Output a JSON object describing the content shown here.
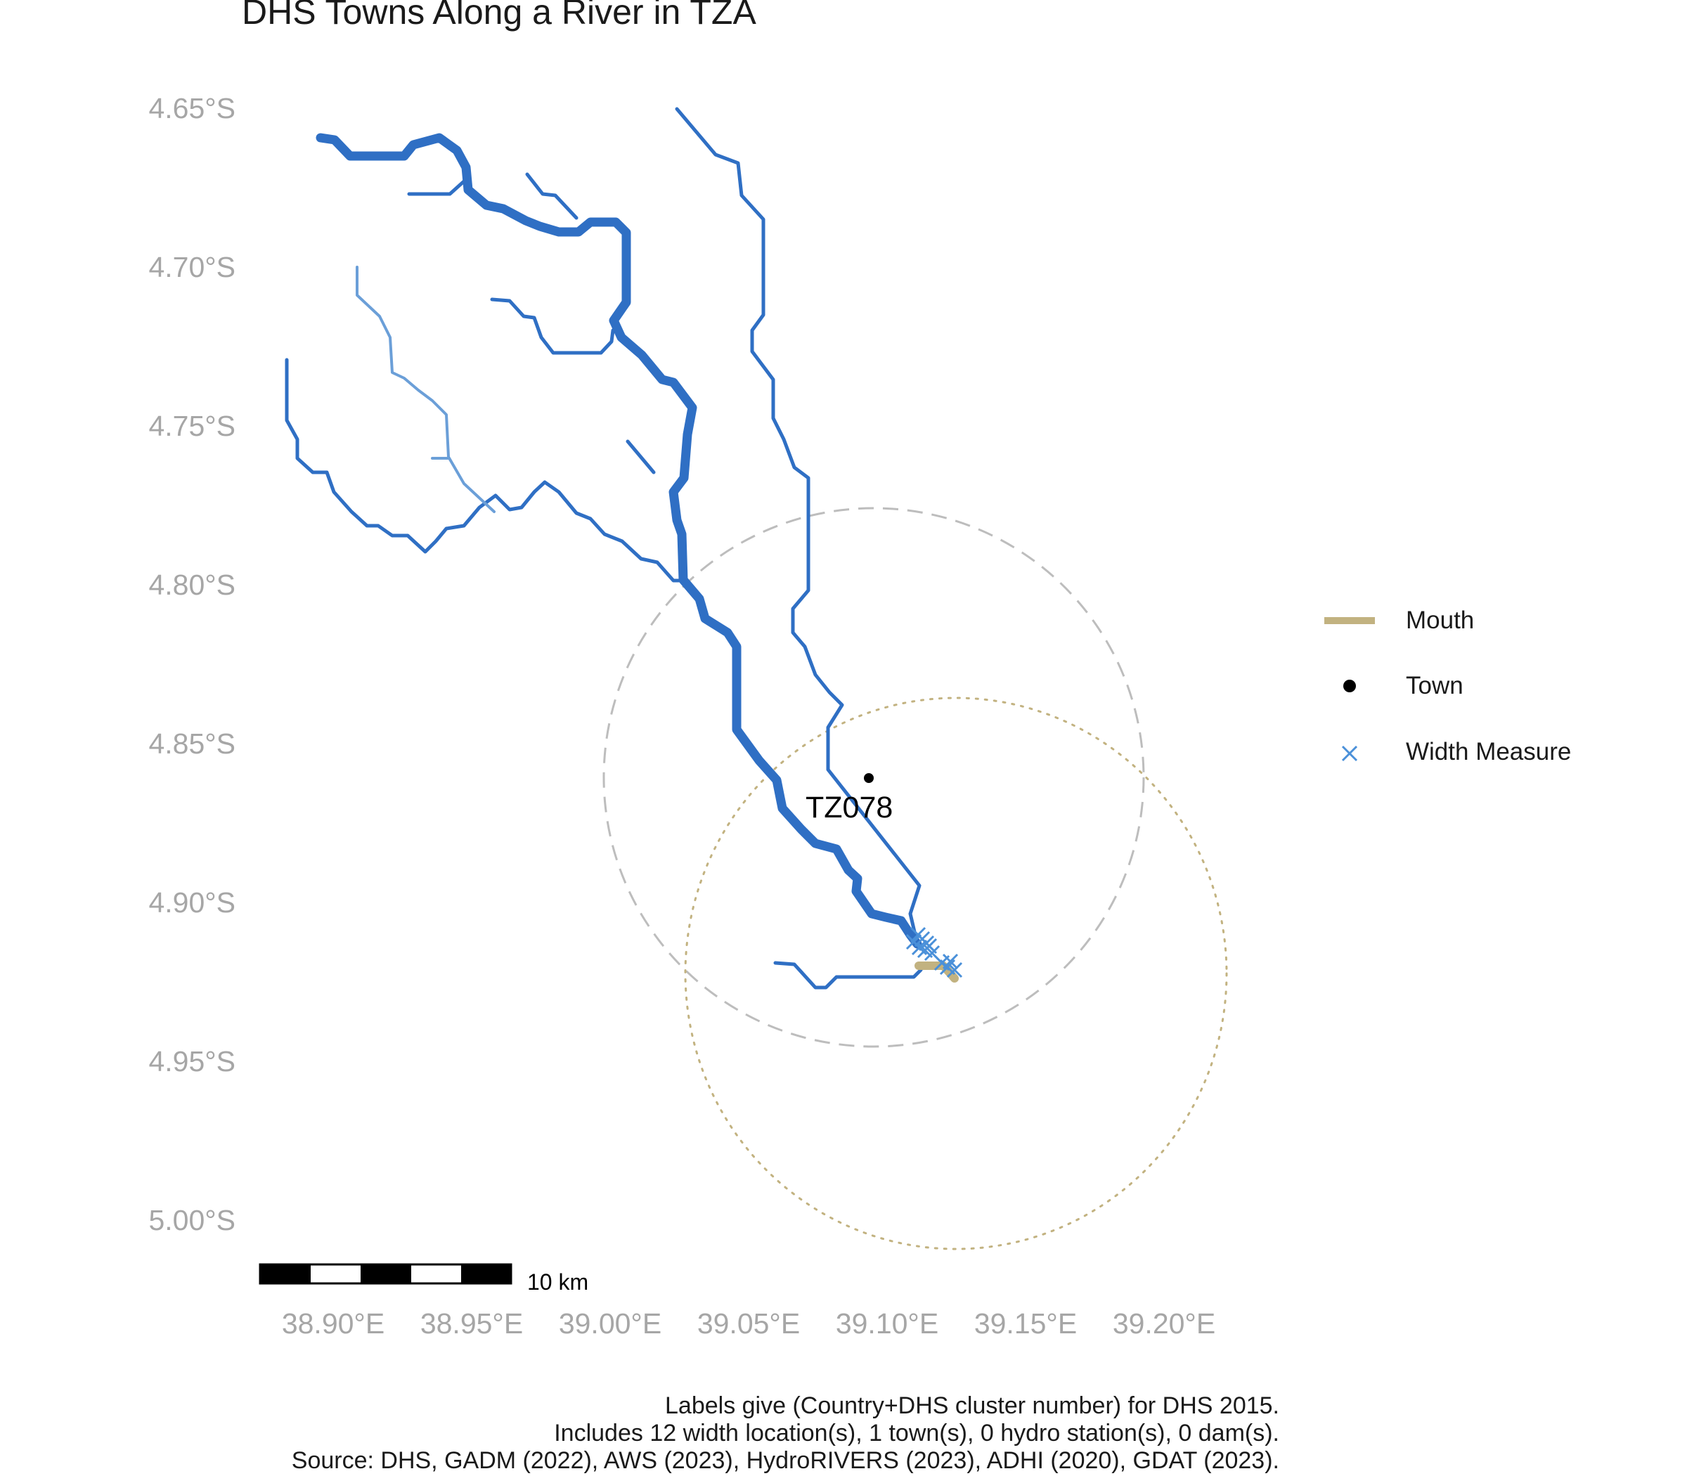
{
  "title": "DHS Towns Along a River in TZA",
  "axes": {
    "y_ticks": [
      "4.65°S",
      "4.70°S",
      "4.75°S",
      "4.80°S",
      "4.85°S",
      "4.90°S",
      "4.95°S",
      "5.00°S"
    ],
    "x_ticks": [
      "38.90°E",
      "38.95°E",
      "39.00°E",
      "39.05°E",
      "39.10°E",
      "39.15°E",
      "39.20°E"
    ],
    "lat_range": [
      -5.0,
      -4.65
    ],
    "lon_range": [
      38.9,
      39.2
    ]
  },
  "town": {
    "label": "TZ078",
    "lon": 39.095,
    "lat": -4.86
  },
  "mouth": {
    "lon": 39.118,
    "lat": -4.919
  },
  "scale_bar": {
    "label": "10 km"
  },
  "legend": [
    {
      "key": "mouth",
      "label": "Mouth",
      "color": "#c2b280"
    },
    {
      "key": "town",
      "label": "Town",
      "color": "#000000"
    },
    {
      "key": "width",
      "label": "Width Measure",
      "color": "#4a90d9"
    }
  ],
  "colors": {
    "river": "#2f6fc4",
    "river_light": "#6b9fd8",
    "mouth": "#c2b280",
    "width_marker": "#4a90d9",
    "circle_town": "#bdbdbd",
    "circle_mouth": "#c2b280"
  },
  "caption": [
    "Labels give (Country+DHS cluster number) for DHS 2015.",
    "Includes 12 width location(s), 1 town(s), 0 hydro station(s), 0 dam(s).",
    "Source: DHS, GADM (2022), AWS (2023), HydroRIVERS (2023), ADHI (2020), GDAT (2023)."
  ]
}
